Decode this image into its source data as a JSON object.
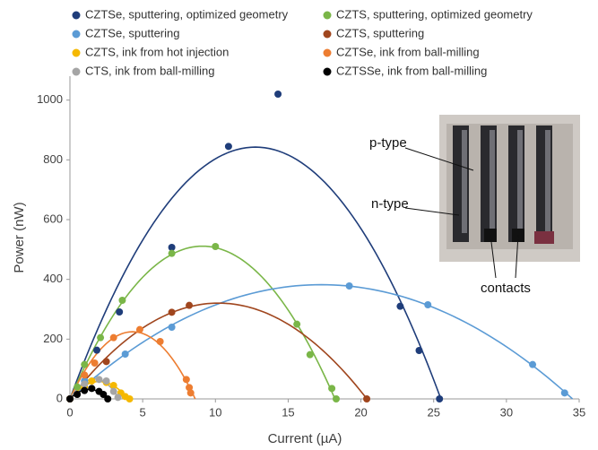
{
  "chart_data": {
    "type": "scatter",
    "x_label": "Current (µA)",
    "y_label": "Power (nW)",
    "xlim": [
      0,
      35
    ],
    "ylim": [
      0,
      1080
    ],
    "xticks": [
      0,
      5,
      10,
      15,
      20,
      25,
      30,
      35
    ],
    "yticks": [
      0,
      200,
      400,
      600,
      800,
      1000
    ],
    "annotations": [
      "p-type",
      "n-type",
      "contacts"
    ],
    "series": [
      {
        "name": "CZTSe, sputtering, optimized geometry",
        "color": "#1f3d7a",
        "x": [
          0,
          1.85,
          3.4,
          7.0,
          10.9,
          14.3,
          22.7,
          24.0,
          25.4
        ],
        "values": [
          0,
          163,
          291,
          507,
          845,
          1020,
          310,
          162,
          0
        ]
      },
      {
        "name": "CZTS, sputtering, optimized geometry",
        "color": "#7ab648",
        "x": [
          0,
          0.5,
          1.0,
          2.1,
          3.6,
          7.0,
          10.0,
          15.6,
          16.5,
          18.0,
          18.3
        ],
        "values": [
          0,
          40,
          115,
          205,
          330,
          487,
          510,
          250,
          148,
          35,
          0
        ]
      },
      {
        "name": "CZTSe, sputtering",
        "color": "#5b9bd5",
        "x": [
          0,
          1.0,
          3.8,
          7.0,
          19.2,
          24.6,
          31.8,
          34.0
        ],
        "values": [
          0,
          60,
          150,
          240,
          378,
          315,
          115,
          20
        ]
      },
      {
        "name": "CZTS, sputtering",
        "color": "#a0461e",
        "x": [
          0,
          2.5,
          7.0,
          8.2,
          20.4
        ],
        "values": [
          0,
          125,
          290,
          313,
          0
        ]
      },
      {
        "name": "CZTS, ink from hot injection",
        "color": "#f5b800",
        "x": [
          0,
          1.0,
          1.5,
          2.5,
          3.0,
          3.5,
          3.8,
          4.1
        ],
        "values": [
          0,
          40,
          60,
          55,
          45,
          20,
          8,
          0
        ]
      },
      {
        "name": "CZTSe, ink from ball-milling",
        "color": "#ed7d31",
        "x": [
          0,
          1.0,
          1.7,
          3.0,
          4.8,
          6.2,
          8.0,
          8.2,
          8.3
        ],
        "values": [
          0,
          80,
          120,
          205,
          232,
          192,
          65,
          38,
          20
        ]
      },
      {
        "name": "CTS, ink from ball-milling",
        "color": "#a5a5a5",
        "x": [
          0,
          1.0,
          2.0,
          2.5,
          3.0,
          3.3
        ],
        "values": [
          0,
          50,
          65,
          60,
          25,
          5
        ]
      },
      {
        "name": "CZTSSe, ink from ball-milling",
        "color": "#000000",
        "x": [
          0,
          0.5,
          1.0,
          1.5,
          2.0,
          2.3,
          2.6
        ],
        "values": [
          0,
          15,
          28,
          35,
          25,
          15,
          0
        ]
      }
    ]
  }
}
